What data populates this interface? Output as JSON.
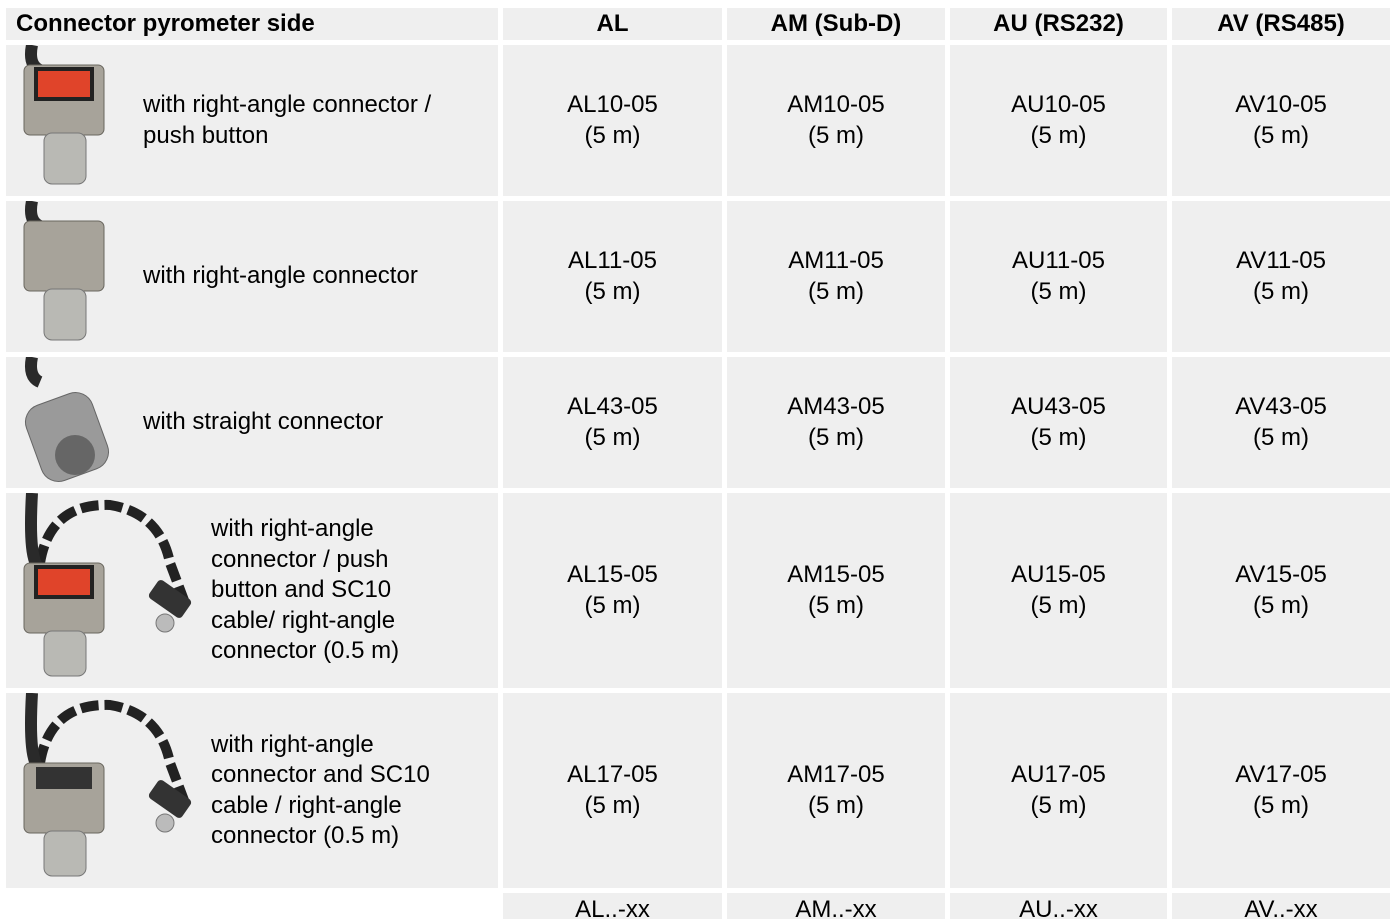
{
  "table": {
    "header": [
      "Connector pyrometer side",
      "AL",
      "AM (Sub-D)",
      "AU (RS232)",
      "AV (RS485)"
    ],
    "rows": [
      {
        "description": [
          "with right-angle connector /",
          "push button"
        ],
        "cells": [
          [
            "AL10-05",
            "(5 m)"
          ],
          [
            "AM10-05",
            "(5 m)"
          ],
          [
            "AU10-05",
            "(5 m)"
          ],
          [
            "AV10-05",
            "(5 m)"
          ]
        ]
      },
      {
        "description": [
          "with right-angle connector"
        ],
        "cells": [
          [
            "AL11-05",
            "(5 m)"
          ],
          [
            "AM11-05",
            "(5 m)"
          ],
          [
            "AU11-05",
            "(5 m)"
          ],
          [
            "AV11-05",
            "(5 m)"
          ]
        ]
      },
      {
        "description": [
          "with straight connector"
        ],
        "cells": [
          [
            "AL43-05",
            "(5 m)"
          ],
          [
            "AM43-05",
            "(5 m)"
          ],
          [
            "AU43-05",
            "(5 m)"
          ],
          [
            "AV43-05",
            "(5 m)"
          ]
        ]
      },
      {
        "description": [
          "with right-angle",
          "connector / push",
          "button and SC10",
          "cable/ right-angle",
          "connector (0.5 m)"
        ],
        "cells": [
          [
            "AL15-05",
            "(5 m)"
          ],
          [
            "AM15-05",
            "(5 m)"
          ],
          [
            "AU15-05",
            "(5 m)"
          ],
          [
            "AV15-05",
            "(5 m)"
          ]
        ]
      },
      {
        "description": [
          "with right-angle",
          "connector and SC10",
          "cable / right-angle",
          "connector (0.5 m)"
        ],
        "cells": [
          [
            "AL17-05",
            "(5 m)"
          ],
          [
            "AM17-05",
            "(5 m)"
          ],
          [
            "AU17-05",
            "(5 m)"
          ],
          [
            "AV17-05",
            "(5 m)"
          ]
        ]
      }
    ],
    "footer": [
      "AL..-xx",
      "AM..-xx",
      "AU..-xx",
      "AV..-xx"
    ]
  }
}
